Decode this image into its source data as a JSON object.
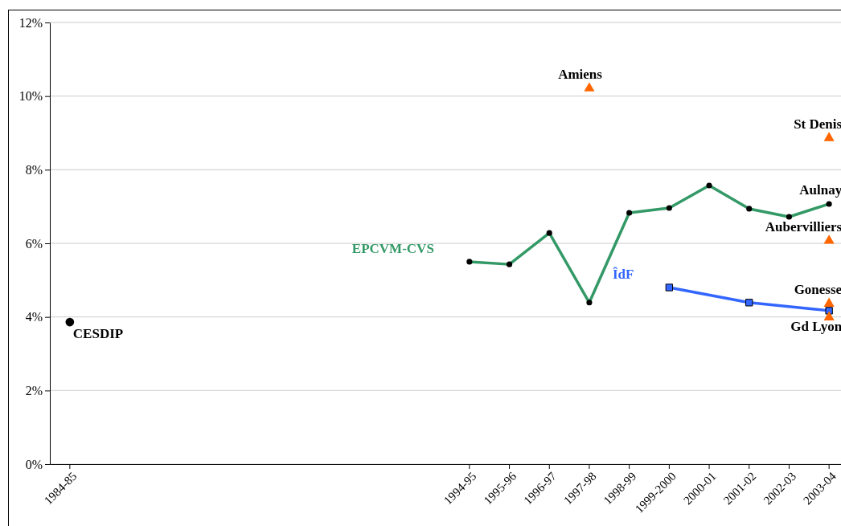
{
  "chart_data": {
    "type": "line",
    "categories": [
      "1984-85",
      null,
      null,
      null,
      null,
      null,
      null,
      null,
      null,
      null,
      "1994-95",
      "1995-96",
      "1996-97",
      "1997-98",
      "1998-99",
      "1999-2000",
      "2000-01",
      "2001-02",
      "2002-03",
      "2003-04"
    ],
    "ylim": [
      0,
      12
    ],
    "yticks": [
      {
        "value": 0,
        "label": "0%"
      },
      {
        "value": 2,
        "label": "2%"
      },
      {
        "value": 4,
        "label": "4%"
      },
      {
        "value": 6,
        "label": "6%"
      },
      {
        "value": 8,
        "label": "8%"
      },
      {
        "value": 10,
        "label": "10%"
      },
      {
        "value": 12,
        "label": "12%"
      }
    ],
    "grid": "y",
    "series": [
      {
        "type": "scatter",
        "marker": "circle",
        "color": "#000000",
        "values": [
          3.86,
          null,
          null,
          null,
          null,
          null,
          null,
          null,
          null,
          null,
          null,
          null,
          null,
          null,
          null,
          null,
          null,
          null,
          null,
          null
        ]
      },
      {
        "name": "EPCVM-CVS",
        "marker": "circle",
        "color": "#339966",
        "colors": [
          null,
          null,
          null,
          null,
          null,
          null,
          null,
          null,
          null,
          null,
          "#000000",
          "#000000",
          "#000000",
          "#000000",
          "#000000",
          "#000000",
          "#000000",
          "#000000",
          "#000000",
          "#000000"
        ],
        "values": [
          null,
          null,
          null,
          null,
          null,
          null,
          null,
          null,
          null,
          null,
          5.5,
          5.43,
          6.28,
          4.39,
          6.83,
          6.96,
          7.57,
          6.94,
          6.72,
          7.07
        ]
      },
      {
        "name": "ÎdF",
        "marker": "square",
        "color": "#3366ff",
        "values": [
          null,
          null,
          null,
          null,
          null,
          null,
          null,
          null,
          null,
          null,
          null,
          null,
          null,
          null,
          null,
          4.8,
          null,
          4.39,
          null,
          4.17
        ]
      },
      {
        "type": "scatter",
        "marker": "triangle",
        "color": "#ff6600",
        "values": [
          null,
          null,
          null,
          null,
          null,
          null,
          null,
          null,
          null,
          null,
          null,
          null,
          null,
          10.21,
          null,
          null,
          null,
          null,
          null,
          null
        ]
      },
      {
        "type": "scatter",
        "marker": "triangle",
        "color": "#ff6600",
        "values": [
          null,
          null,
          null,
          null,
          null,
          null,
          null,
          null,
          null,
          null,
          null,
          null,
          null,
          null,
          null,
          null,
          null,
          null,
          null,
          8.86
        ]
      },
      {
        "type": "scatter",
        "marker": "triangle",
        "color": "#ff6600",
        "values": [
          null,
          null,
          null,
          null,
          null,
          null,
          null,
          null,
          null,
          null,
          null,
          null,
          null,
          null,
          null,
          null,
          null,
          null,
          null,
          6.07
        ]
      },
      {
        "type": "scatter",
        "marker": "triangle",
        "color": "#ff6600",
        "values": [
          null,
          null,
          null,
          null,
          null,
          null,
          null,
          null,
          null,
          null,
          null,
          null,
          null,
          null,
          null,
          null,
          null,
          null,
          null,
          4.36
        ]
      },
      {
        "type": "scatter",
        "marker": "triangle",
        "color": "#ff6600",
        "values": [
          null,
          null,
          null,
          null,
          null,
          null,
          null,
          null,
          null,
          null,
          null,
          null,
          null,
          null,
          null,
          null,
          null,
          null,
          null,
          3.99
        ]
      }
    ],
    "annotations": [
      {
        "text": "CESDIP",
        "x": "1984-85",
        "y": 3.86
      },
      {
        "text": "Amiens",
        "x": "1997-98",
        "y": 10.21
      },
      {
        "text": "St Denis",
        "x": "2003-04",
        "y": 8.86
      },
      {
        "text": "Aulnay",
        "x": "2003-04",
        "y": 7.07
      },
      {
        "text": "Aubervilliers",
        "x": "2003-04",
        "y": 6.07
      },
      {
        "text": "Gonesse",
        "x": "2003-04",
        "y": 4.36
      },
      {
        "text": "Gd Lyon",
        "x": "2003-04",
        "y": 3.99
      }
    ]
  }
}
